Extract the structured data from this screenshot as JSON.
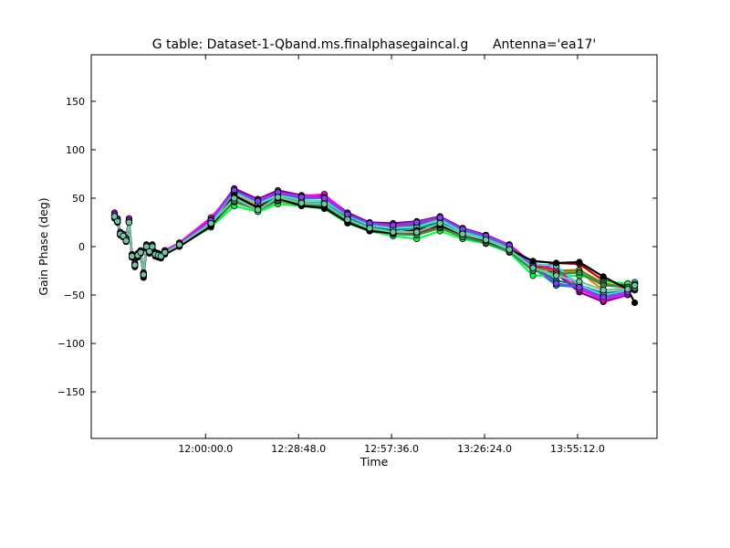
{
  "figure": {
    "title": "G table: Dataset-1-Qband.ms.finalphasegaincal.g      Antenna='ea17'"
  },
  "chart_data": {
    "type": "line",
    "title": "G table: Dataset-1-Qband.ms.finalphasegaincal.g      Antenna='ea17'",
    "xlabel": "Time",
    "ylabel": "Gain Phase (deg)",
    "x_unit": "hours",
    "xlim": [
      11.41,
      14.33
    ],
    "ylim": [
      -198,
      198
    ],
    "x_ticks": [
      {
        "value": 12.0,
        "label": "12:00:00.0"
      },
      {
        "value": 12.48,
        "label": "12:28:48.0"
      },
      {
        "value": 12.96,
        "label": "12:57:36.0"
      },
      {
        "value": 13.44,
        "label": "13:26:24.0"
      },
      {
        "value": 13.92,
        "label": "13:55:12.0"
      }
    ],
    "y_ticks": [
      {
        "value": 150,
        "label": "150"
      },
      {
        "value": 100,
        "label": "100"
      },
      {
        "value": 50,
        "label": "50"
      },
      {
        "value": 0,
        "label": "0"
      },
      {
        "value": -50,
        "label": "−50"
      },
      {
        "value": -100,
        "label": "−100"
      },
      {
        "value": -150,
        "label": "−150"
      }
    ],
    "grid": false,
    "legend": "none",
    "marker": "circle",
    "x": [
      11.53,
      11.545,
      11.56,
      11.575,
      11.59,
      11.605,
      11.62,
      11.635,
      11.65,
      11.665,
      11.68,
      11.695,
      11.71,
      11.725,
      11.74,
      11.755,
      11.77,
      11.79,
      11.865,
      12.028,
      12.148,
      12.27,
      12.373,
      12.495,
      12.613,
      12.733,
      12.847,
      12.968,
      13.09,
      13.21,
      13.327,
      13.447,
      13.568,
      13.69,
      13.81,
      13.929,
      14.053,
      14.179,
      14.215
    ],
    "series_colors": [
      "#0000ff",
      "#00a0a0",
      "#ff8000",
      "#800080",
      "#ff00ff",
      "#c00000",
      "#00ff40",
      "#808000",
      "#008080",
      "#ff0080",
      "#40e0d0",
      "#8040ff",
      "#2e8b57",
      "#000000",
      "#70c8a0"
    ],
    "series": [
      {
        "values": [
          33,
          28,
          14,
          12,
          8,
          27,
          -9,
          -18,
          -8,
          -5,
          -28,
          1,
          -4,
          1,
          -7,
          -8,
          -9,
          -5,
          3,
          27,
          59,
          47,
          57,
          51,
          51,
          34,
          24,
          22,
          25,
          31,
          18,
          11,
          1,
          -20,
          -20,
          -42,
          -52,
          -46,
          -37
        ]
      },
      {
        "values": [
          32,
          27,
          13,
          11,
          7,
          26,
          -10,
          -19,
          -9,
          -6,
          -29,
          0,
          -5,
          0,
          -8,
          -9,
          -10,
          -6,
          2,
          26,
          58,
          46,
          55,
          50,
          50,
          33,
          23,
          21,
          22,
          29,
          17,
          10,
          -1,
          -22,
          -40,
          -42,
          -53,
          -47,
          -38
        ]
      },
      {
        "values": [
          31,
          27,
          13,
          11,
          7,
          26,
          -9,
          -18,
          -9,
          -5,
          -28,
          1,
          -4,
          1,
          -7,
          -8,
          -9,
          -5,
          3,
          25,
          53,
          43,
          53,
          46,
          44,
          28,
          19,
          14,
          15,
          21,
          12,
          6,
          -3,
          -21,
          -25,
          -26,
          -45,
          -43,
          -38
        ]
      },
      {
        "values": [
          34,
          28,
          14,
          12,
          8,
          28,
          -8,
          -17,
          -8,
          -5,
          -27,
          2,
          -3,
          2,
          -6,
          -7,
          -8,
          -4,
          4,
          28,
          60,
          49,
          58,
          53,
          53,
          35,
          25,
          24,
          26,
          31,
          19,
          12,
          2,
          -18,
          -28,
          -47,
          -57,
          -50,
          -42
        ]
      },
      {
        "values": [
          35,
          29,
          15,
          13,
          9,
          29,
          -8,
          -17,
          -7,
          -4,
          -27,
          2,
          -3,
          2,
          -6,
          -7,
          -8,
          -4,
          4,
          30,
          57,
          48,
          56,
          52,
          54,
          33,
          24,
          22,
          24,
          30,
          18,
          11,
          2,
          -19,
          -26,
          -44,
          -55,
          -49,
          -40
        ]
      },
      {
        "values": [
          30,
          26,
          12,
          10,
          6,
          25,
          -11,
          -20,
          -10,
          -6,
          -30,
          -1,
          -6,
          -1,
          -9,
          -10,
          -11,
          -7,
          1,
          22,
          49,
          41,
          52,
          43,
          41,
          25,
          16,
          13,
          14,
          20,
          11,
          5,
          -4,
          -23,
          -17,
          -18,
          -35,
          -40,
          -45
        ]
      },
      {
        "values": [
          29,
          25,
          12,
          10,
          6,
          25,
          -10,
          -20,
          -10,
          -7,
          -30,
          -1,
          -6,
          -1,
          -9,
          -10,
          -11,
          -7,
          1,
          20,
          42,
          36,
          44,
          42,
          39,
          24,
          16,
          11,
          8,
          16,
          8,
          3,
          -6,
          -30,
          -30,
          -30,
          -36,
          -38,
          -45
        ]
      },
      {
        "values": [
          30,
          26,
          12,
          10,
          6,
          25,
          -11,
          -20,
          -10,
          -6,
          -30,
          -1,
          -6,
          -1,
          -9,
          -10,
          -11,
          -7,
          1,
          22,
          46,
          38,
          47,
          43,
          42,
          26,
          17,
          13,
          12,
          19,
          10,
          4,
          -5,
          -22,
          -25,
          -24,
          -38,
          -42,
          -44
        ]
      },
      {
        "values": [
          31,
          26,
          12,
          11,
          7,
          26,
          -10,
          -19,
          -9,
          -6,
          -29,
          0,
          -5,
          0,
          -8,
          -9,
          -10,
          -6,
          2,
          24,
          50,
          40,
          52,
          45,
          45,
          30,
          20,
          17,
          19,
          25,
          15,
          8,
          -2,
          -21,
          -35,
          -40,
          -48,
          -46,
          -38
        ]
      },
      {
        "values": [
          33,
          28,
          14,
          12,
          8,
          27,
          -9,
          -18,
          -8,
          -5,
          -28,
          1,
          -4,
          1,
          -7,
          -8,
          -9,
          -5,
          3,
          28,
          56,
          47,
          55,
          51,
          51,
          32,
          23,
          21,
          24,
          29,
          18,
          11,
          1,
          -18,
          -24,
          -40,
          -50,
          -47,
          -38
        ]
      },
      {
        "values": [
          32,
          27,
          13,
          11,
          7,
          26,
          -10,
          -19,
          -9,
          -6,
          -29,
          0,
          -5,
          0,
          -8,
          -9,
          -10,
          -6,
          2,
          26,
          56,
          44,
          53,
          48,
          47,
          32,
          22,
          19,
          20,
          28,
          15,
          8,
          -2,
          -18,
          -20,
          -40,
          -50,
          -46,
          -37
        ]
      },
      {
        "values": [
          33,
          28,
          14,
          12,
          8,
          27,
          -9,
          -18,
          -8,
          -5,
          -28,
          1,
          -4,
          1,
          -7,
          -8,
          -9,
          -5,
          3,
          27,
          58,
          47,
          56,
          51,
          50,
          33,
          24,
          22,
          25,
          30,
          18,
          11,
          1,
          -20,
          -38,
          -42,
          -52,
          -47,
          -39
        ]
      },
      {
        "values": [
          30,
          26,
          12,
          10,
          6,
          25,
          -10,
          -20,
          -10,
          -6,
          -30,
          -1,
          -6,
          -1,
          -9,
          -10,
          -11,
          -7,
          1,
          22,
          47,
          38,
          48,
          44,
          42,
          26,
          17,
          13,
          12,
          20,
          10,
          4,
          -5,
          -25,
          -28,
          -27,
          -40,
          -42,
          -43
        ]
      },
      {
        "values": [
          30,
          25,
          12,
          10,
          5,
          25,
          -11,
          -21,
          -11,
          -7,
          -32,
          -2,
          -7,
          -2,
          -10,
          -11,
          -12,
          -8,
          0,
          21,
          53,
          40,
          50,
          42,
          40,
          25,
          16,
          14,
          17,
          22,
          13,
          6,
          -3,
          -15,
          -17,
          -16,
          -31,
          -44,
          -58
        ]
      },
      {
        "values": [
          31,
          26,
          13,
          11,
          6,
          25,
          -10,
          -19,
          -9,
          -6,
          -29,
          0,
          -5,
          0,
          -8,
          -9,
          -10,
          -6,
          2,
          24,
          50,
          38,
          51,
          45,
          44,
          28,
          19,
          15,
          15,
          24,
          13,
          7,
          -3,
          -22,
          -30,
          -36,
          -45,
          -44,
          -40
        ]
      }
    ]
  }
}
